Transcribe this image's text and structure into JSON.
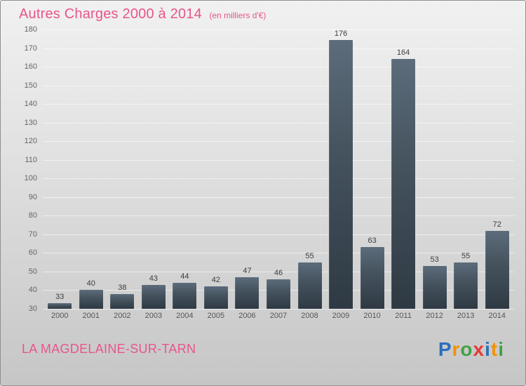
{
  "header": {
    "title": "Autres Charges 2000 à 2014",
    "subtitle": "(en milliers d'€)"
  },
  "chart_data": {
    "type": "bar",
    "title": "Autres Charges 2000 à 2014 (en milliers d'€)",
    "categories": [
      "2000",
      "2001",
      "2002",
      "2003",
      "2004",
      "2005",
      "2006",
      "2007",
      "2008",
      "2009",
      "2010",
      "2011",
      "2012",
      "2013",
      "2014"
    ],
    "values": [
      33,
      40,
      38,
      43,
      44,
      42,
      47,
      46,
      55,
      176,
      63,
      164,
      53,
      55,
      72
    ],
    "xlabel": "",
    "ylabel": "",
    "ylim": [
      30,
      180
    ],
    "ytick_step": 10,
    "grid": true,
    "legend": false,
    "bar_color_top": "#5c6c7b",
    "bar_color_bottom": "#2e3943",
    "value_label_color": "#3d3d3d"
  },
  "footer": {
    "city": "LA MAGDELAINE-SUR-TARN"
  },
  "logo": {
    "name": "Proxiti",
    "letters": [
      {
        "char": "P",
        "color": "#2a6fbb"
      },
      {
        "char": "r",
        "color": "#f39200"
      },
      {
        "char": "o",
        "color": "#43a047"
      },
      {
        "char": "x",
        "color": "#e53935"
      },
      {
        "char": "i",
        "color": "#2a6fbb"
      },
      {
        "char": "t",
        "color": "#f39200"
      },
      {
        "char": "i",
        "color": "#43a047"
      }
    ]
  },
  "colors": {
    "accent_pink": "#e8558b",
    "tick_label": "#666666",
    "gridline": "rgba(255,255,255,0.55)"
  }
}
